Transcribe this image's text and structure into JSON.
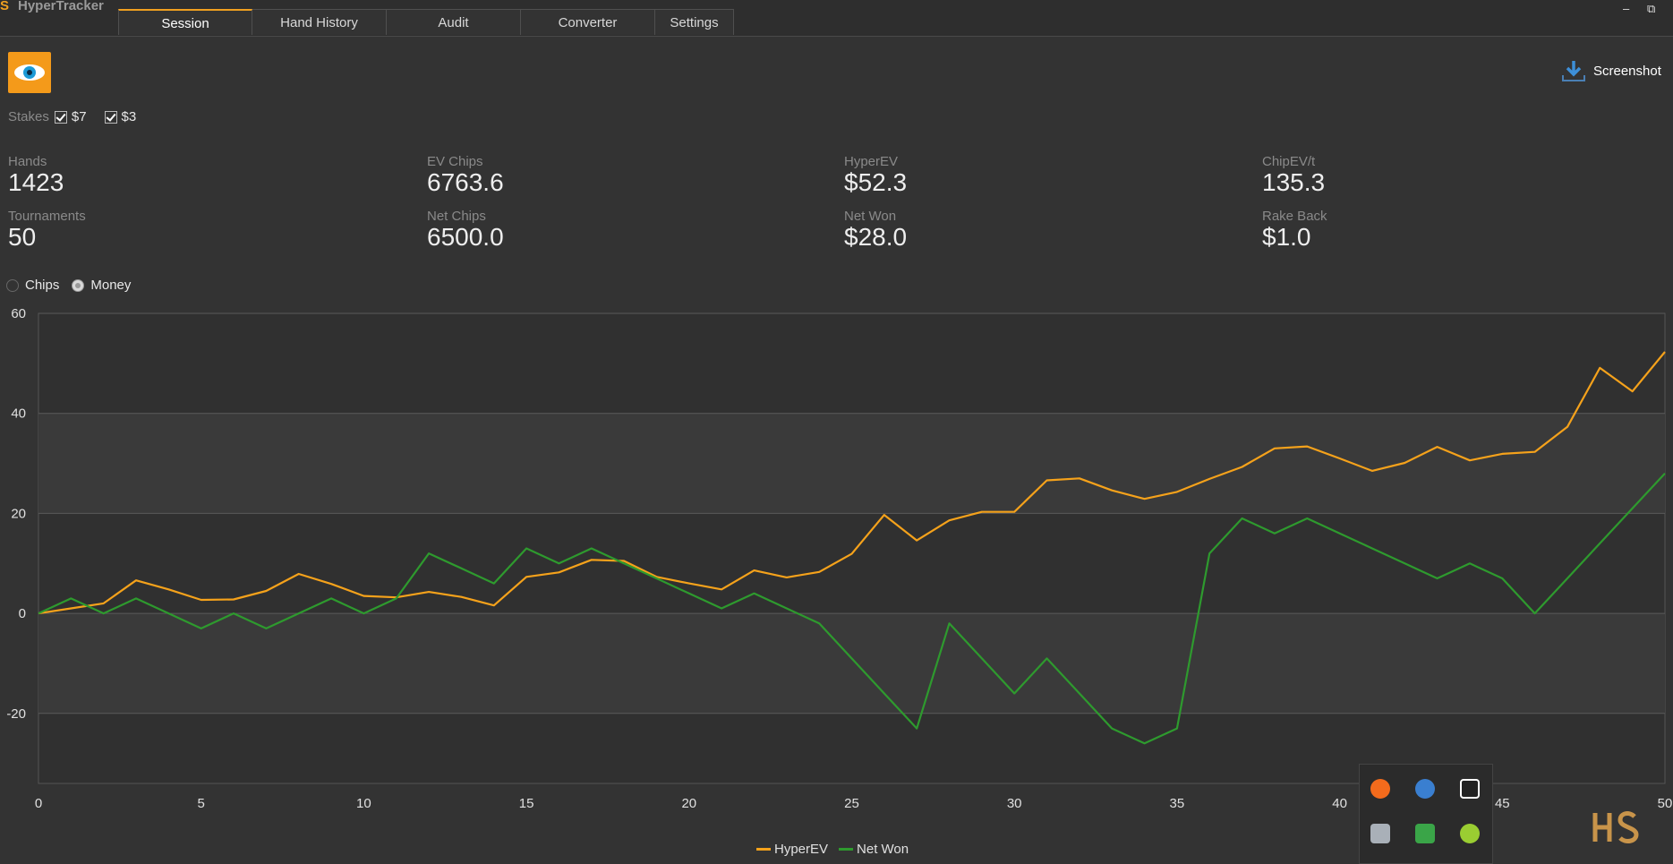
{
  "app": {
    "title": "HyperTracker",
    "logo_text": "S"
  },
  "tabs": [
    {
      "label": "Session",
      "active": true
    },
    {
      "label": "Hand History",
      "active": false
    },
    {
      "label": "Audit",
      "active": false
    },
    {
      "label": "Converter",
      "active": false
    },
    {
      "label": "Settings",
      "active": false
    }
  ],
  "window_controls": {
    "minimize": "–",
    "restore": "⧉"
  },
  "toolbar": {
    "screenshot_label": "Screenshot"
  },
  "stakes": {
    "label": "Stakes",
    "options": [
      {
        "label": "$7",
        "checked": true
      },
      {
        "label": "$3",
        "checked": true
      }
    ]
  },
  "stats": {
    "hands": {
      "label": "Hands",
      "value": "1423"
    },
    "tournaments": {
      "label": "Tournaments",
      "value": "50"
    },
    "ev_chips": {
      "label": "EV Chips",
      "value": "6763.6"
    },
    "net_chips": {
      "label": "Net Chips",
      "value": "6500.0"
    },
    "hyper_ev": {
      "label": "HyperEV",
      "value": "$52.3"
    },
    "net_won": {
      "label": "Net Won",
      "value": "$28.0"
    },
    "chip_ev_t": {
      "label": "ChipEV/t",
      "value": "135.3"
    },
    "rake_back": {
      "label": "Rake Back",
      "value": "$1.0"
    }
  },
  "view_mode": {
    "chips_label": "Chips",
    "money_label": "Money",
    "selected": "Money"
  },
  "colors": {
    "accent": "#f0a020",
    "hyper_ev_line": "#f5a21b",
    "net_won_line": "#2e9a2e",
    "background": "#333333"
  },
  "chart_data": {
    "type": "line",
    "x_ticks": [
      0,
      5,
      10,
      15,
      20,
      25,
      30,
      35,
      40,
      45,
      50
    ],
    "y_ticks": [
      60,
      40,
      20,
      0,
      -20
    ],
    "xlim": [
      0,
      50
    ],
    "ylim": [
      -34,
      60
    ],
    "grid": true,
    "legend_position": "bottom-center",
    "x": [
      0,
      1,
      2,
      3,
      4,
      5,
      6,
      7,
      8,
      9,
      10,
      11,
      12,
      13,
      14,
      15,
      16,
      17,
      18,
      19,
      20,
      21,
      22,
      23,
      24,
      25,
      26,
      27,
      28,
      29,
      30,
      31,
      32,
      33,
      34,
      35,
      36,
      37,
      38,
      39,
      40,
      41,
      42,
      43,
      44,
      45,
      46,
      47,
      48,
      49,
      50
    ],
    "series": [
      {
        "name": "HyperEV",
        "color": "#f5a21b",
        "values": [
          0,
          1,
          2,
          6.6,
          4.8,
          2.7,
          2.8,
          4.5,
          7.9,
          5.9,
          3.5,
          3.2,
          4.3,
          3.3,
          1.6,
          7.3,
          8.2,
          10.7,
          10.5,
          7.3,
          6,
          4.8,
          8.6,
          7.2,
          8.3,
          11.9,
          19.7,
          14.6,
          18.6,
          20.3,
          20.3,
          26.6,
          27,
          24.6,
          22.9,
          24.3,
          26.9,
          29.3,
          33,
          33.4,
          31,
          28.5,
          30.1,
          33.3,
          30.6,
          31.9,
          32.3,
          37.3,
          49.1,
          44.4,
          52.3
        ]
      },
      {
        "name": "Net Won",
        "color": "#2e9a2e",
        "values": [
          0,
          3,
          0,
          3,
          0,
          -3,
          0,
          -3,
          0,
          3,
          0,
          3,
          12,
          9,
          6,
          13,
          10,
          13,
          10,
          7,
          4,
          1,
          4,
          1,
          -2,
          -9,
          -16,
          -23,
          -2,
          -9,
          -16,
          -9,
          -16,
          -23,
          -26,
          -23,
          12,
          19,
          16,
          19,
          16,
          13,
          10,
          7,
          10,
          7,
          0,
          7,
          14,
          21,
          28
        ]
      }
    ]
  }
}
